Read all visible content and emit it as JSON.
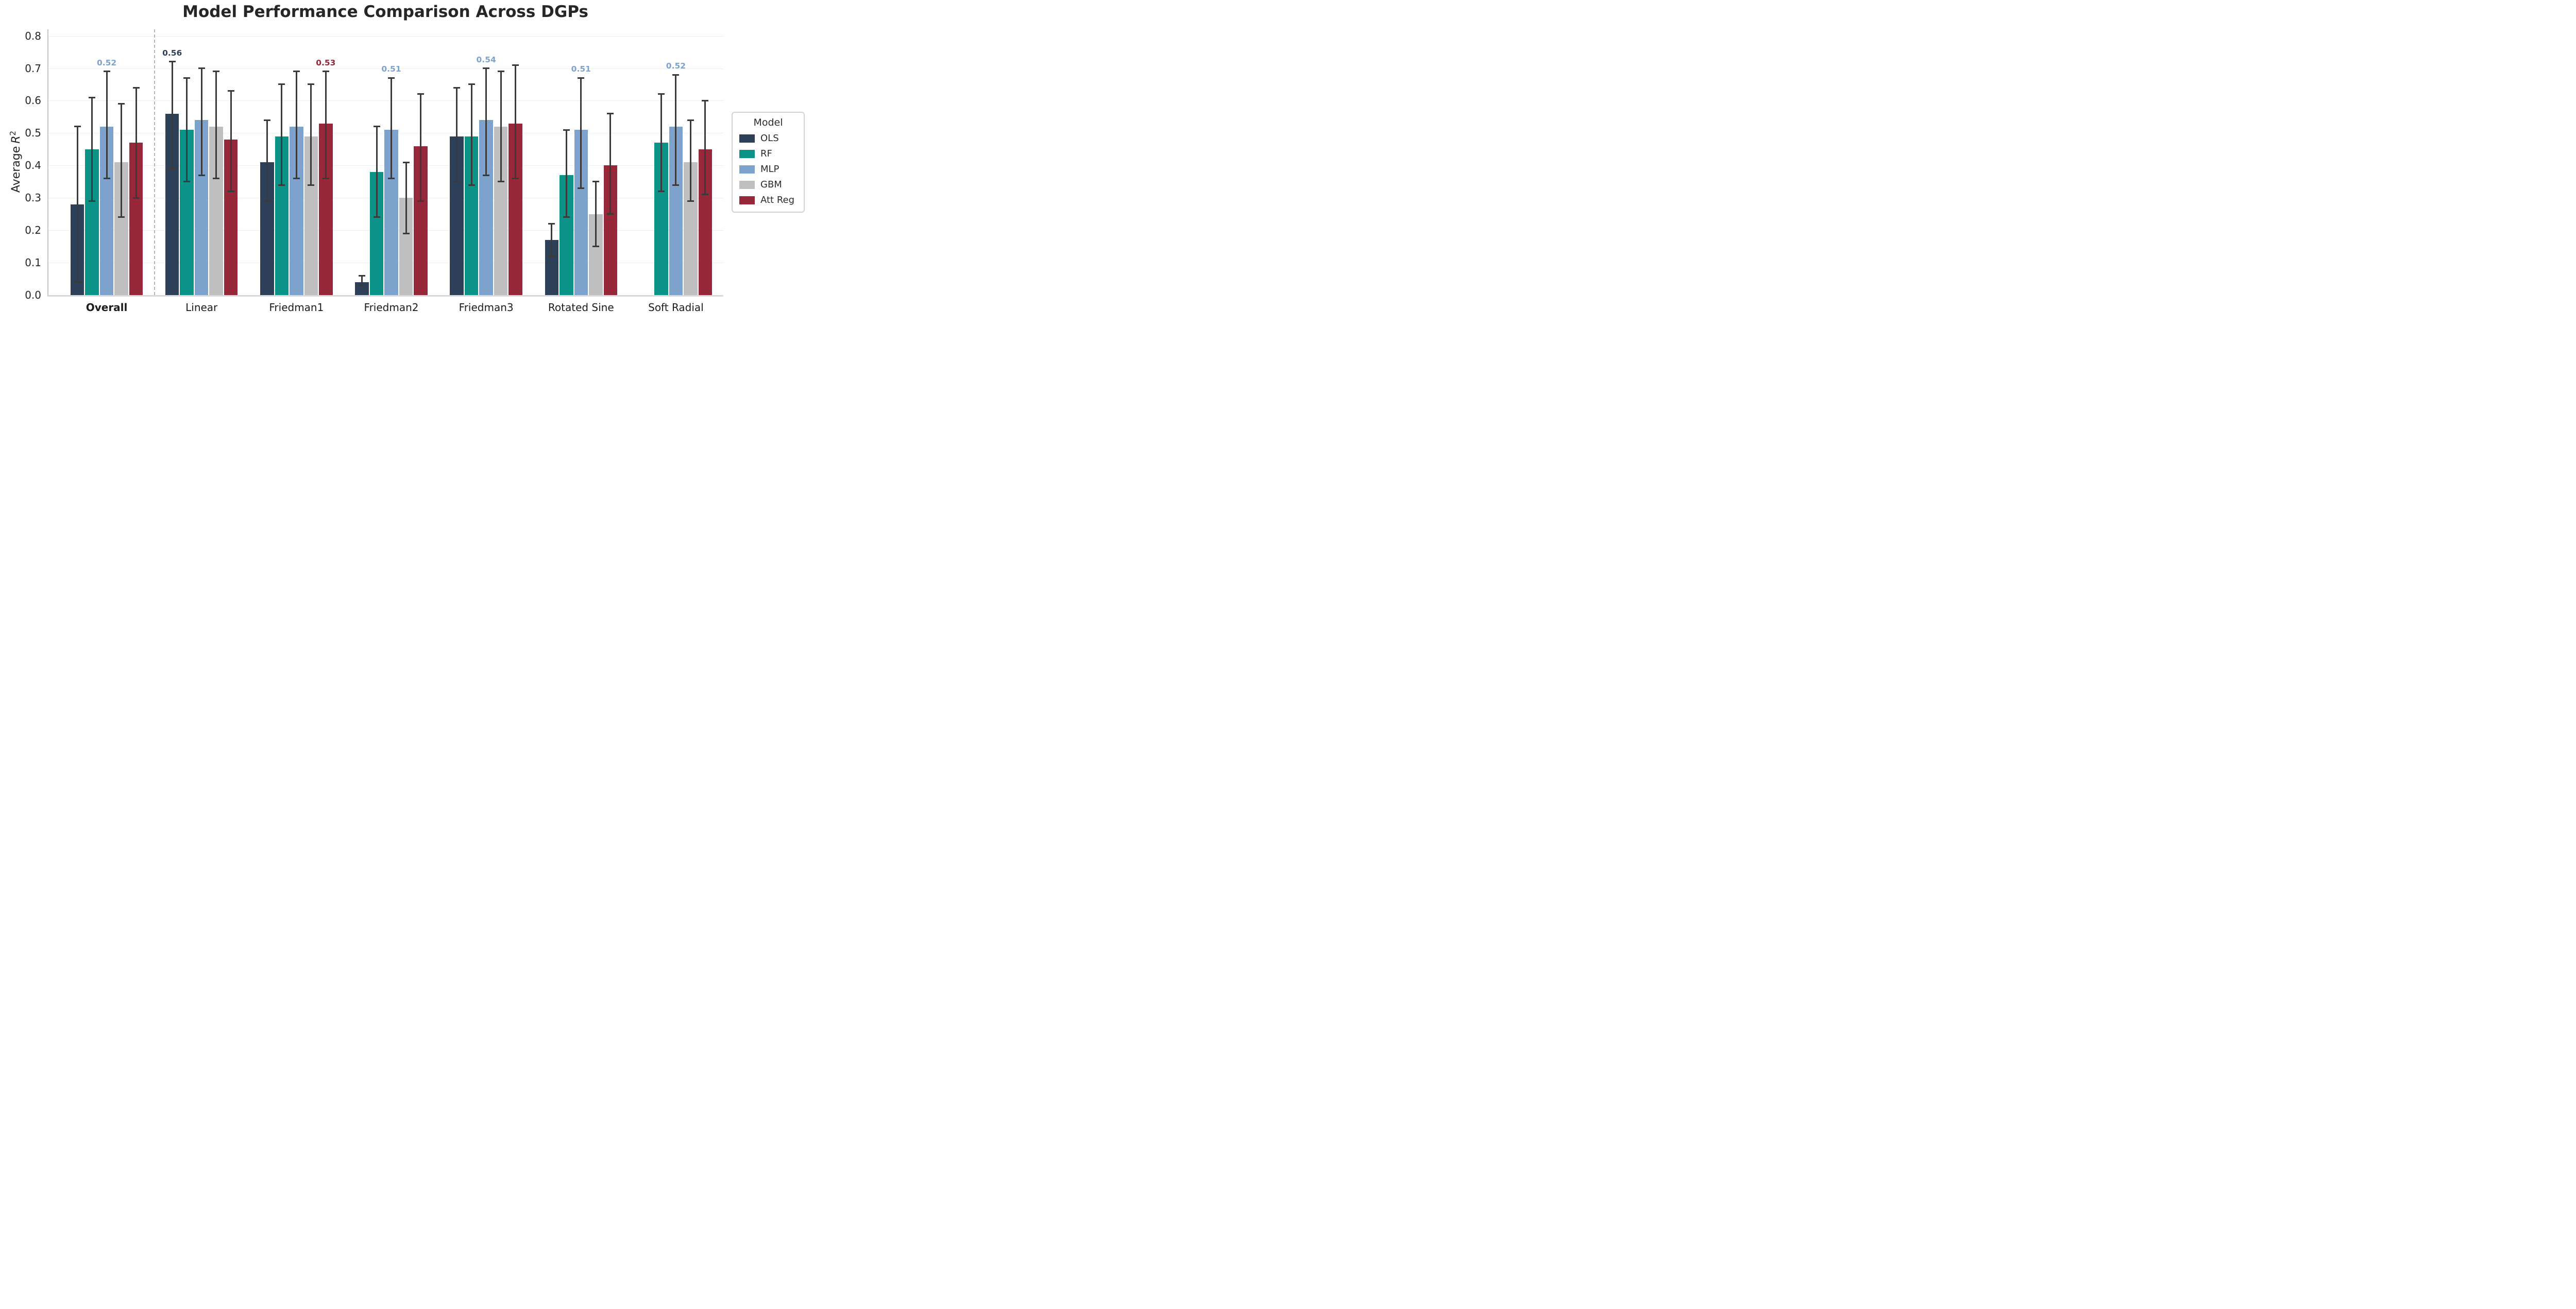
{
  "title": "Model Performance Comparison Across DGPs",
  "ylabel": {
    "prefix": "Average",
    "symbol": "R",
    "superscript": "2"
  },
  "legend": {
    "title": "Model"
  },
  "colors": {
    "grid": "#ededed",
    "left_spine": "#c6c6c6",
    "bottom_spine": "#d9d9d9",
    "error_bar": "#3a3a3a",
    "separator": "#b5b5b5",
    "text": "#262626"
  },
  "chart_data": {
    "type": "bar",
    "title": "Model Performance Comparison Across DGPs",
    "xlabel": "",
    "ylabel": "Average R^2",
    "ylim": [
      0,
      0.82
    ],
    "yticks": [
      0.0,
      0.1,
      0.2,
      0.3,
      0.4,
      0.5,
      0.6,
      0.7,
      0.8
    ],
    "grid": true,
    "legend_position": "right",
    "legend_title": "Model",
    "categories": [
      {
        "label": "Overall",
        "bold": true,
        "separator_after": true
      },
      {
        "label": "Linear",
        "bold": false,
        "separator_after": false
      },
      {
        "label": "Friedman1",
        "bold": false,
        "separator_after": false
      },
      {
        "label": "Friedman2",
        "bold": false,
        "separator_after": false
      },
      {
        "label": "Friedman3",
        "bold": false,
        "separator_after": false
      },
      {
        "label": "Rotated Sine",
        "bold": false,
        "separator_after": false
      },
      {
        "label": "Soft Radial",
        "bold": false,
        "separator_after": false
      }
    ],
    "series": [
      {
        "name": "OLS",
        "color": "#2e4057",
        "values": [
          0.28,
          0.56,
          0.41,
          0.04,
          0.49,
          0.17,
          null
        ],
        "err_low": [
          0.04,
          0.39,
          0.29,
          0.03,
          0.35,
          0.12,
          null
        ],
        "err_high": [
          0.52,
          0.72,
          0.54,
          0.06,
          0.64,
          0.22,
          null
        ]
      },
      {
        "name": "RF",
        "color": "#0a9386",
        "values": [
          0.45,
          0.51,
          0.49,
          0.38,
          0.49,
          0.37,
          0.47
        ],
        "err_low": [
          0.29,
          0.35,
          0.34,
          0.24,
          0.34,
          0.24,
          0.32
        ],
        "err_high": [
          0.61,
          0.67,
          0.65,
          0.52,
          0.65,
          0.51,
          0.62
        ]
      },
      {
        "name": "MLP",
        "color": "#7da2cc",
        "values": [
          0.52,
          0.54,
          0.52,
          0.51,
          0.54,
          0.51,
          0.52
        ],
        "err_low": [
          0.36,
          0.37,
          0.36,
          0.36,
          0.37,
          0.33,
          0.34
        ],
        "err_high": [
          0.69,
          0.7,
          0.69,
          0.67,
          0.7,
          0.67,
          0.68
        ]
      },
      {
        "name": "GBM",
        "color": "#bfbfbf",
        "values": [
          0.41,
          0.52,
          0.49,
          0.3,
          0.52,
          0.25,
          0.41
        ],
        "err_low": [
          0.24,
          0.36,
          0.34,
          0.19,
          0.35,
          0.15,
          0.29
        ],
        "err_high": [
          0.59,
          0.69,
          0.65,
          0.41,
          0.69,
          0.35,
          0.54
        ]
      },
      {
        "name": "Att Reg",
        "color": "#96283a",
        "values": [
          0.47,
          0.48,
          0.53,
          0.46,
          0.53,
          0.4,
          0.45
        ],
        "err_low": [
          0.3,
          0.32,
          0.36,
          0.29,
          0.36,
          0.25,
          0.31
        ],
        "err_high": [
          0.64,
          0.63,
          0.69,
          0.62,
          0.71,
          0.56,
          0.6
        ]
      }
    ],
    "annotations": [
      {
        "category": "Overall",
        "series": "MLP",
        "text": "0.52"
      },
      {
        "category": "Linear",
        "series": "OLS",
        "text": "0.56"
      },
      {
        "category": "Friedman1",
        "series": "Att Reg",
        "text": "0.53"
      },
      {
        "category": "Friedman2",
        "series": "MLP",
        "text": "0.51"
      },
      {
        "category": "Friedman3",
        "series": "MLP",
        "text": "0.54"
      },
      {
        "category": "Rotated Sine",
        "series": "MLP",
        "text": "0.51"
      },
      {
        "category": "Soft Radial",
        "series": "MLP",
        "text": "0.52"
      }
    ]
  }
}
